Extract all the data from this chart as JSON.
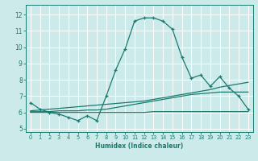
{
  "xlabel": "Humidex (Indice chaleur)",
  "ylabel": "",
  "bg_color": "#cceaea",
  "grid_color": "#ffffff",
  "line_color": "#1a7a6e",
  "xlim": [
    -0.5,
    23.5
  ],
  "ylim": [
    4.8,
    12.6
  ],
  "yticks": [
    5,
    6,
    7,
    8,
    9,
    10,
    11,
    12
  ],
  "xticks": [
    0,
    1,
    2,
    3,
    4,
    5,
    6,
    7,
    8,
    9,
    10,
    11,
    12,
    13,
    14,
    15,
    16,
    17,
    18,
    19,
    20,
    21,
    22,
    23
  ],
  "series1_x": [
    0,
    1,
    2,
    3,
    4,
    5,
    6,
    7,
    8,
    9,
    10,
    11,
    12,
    13,
    14,
    15,
    16,
    17,
    18,
    19,
    20,
    21,
    22,
    23
  ],
  "series1_y": [
    6.6,
    6.2,
    6.0,
    5.9,
    5.7,
    5.5,
    5.8,
    5.5,
    7.0,
    8.6,
    9.9,
    11.6,
    11.8,
    11.8,
    11.6,
    11.1,
    9.4,
    8.1,
    8.3,
    7.6,
    8.2,
    7.5,
    7.0,
    6.2
  ],
  "series2_x": [
    0,
    1,
    2,
    3,
    4,
    5,
    6,
    7,
    8,
    9,
    10,
    11,
    12,
    13,
    14,
    15,
    16,
    17,
    18,
    19,
    20,
    21,
    22,
    23
  ],
  "series2_y": [
    6.1,
    6.15,
    6.2,
    6.25,
    6.3,
    6.35,
    6.4,
    6.45,
    6.5,
    6.55,
    6.6,
    6.65,
    6.7,
    6.8,
    6.9,
    7.0,
    7.1,
    7.2,
    7.3,
    7.4,
    7.55,
    7.65,
    7.75,
    7.85
  ],
  "series3_x": [
    0,
    1,
    2,
    3,
    4,
    5,
    6,
    7,
    8,
    9,
    10,
    11,
    12,
    13,
    14,
    15,
    16,
    17,
    18,
    19,
    20,
    21,
    22,
    23
  ],
  "series3_y": [
    6.0,
    6.0,
    6.0,
    6.0,
    6.0,
    6.0,
    6.0,
    6.0,
    6.0,
    6.0,
    6.0,
    6.0,
    6.0,
    6.05,
    6.05,
    6.05,
    6.05,
    6.05,
    6.05,
    6.05,
    6.05,
    6.05,
    6.05,
    6.05
  ],
  "series4_x": [
    0,
    1,
    2,
    3,
    4,
    5,
    6,
    7,
    8,
    9,
    10,
    11,
    12,
    13,
    14,
    15,
    16,
    17,
    18,
    19,
    20,
    21,
    22,
    23
  ],
  "series4_y": [
    6.05,
    6.05,
    6.05,
    6.1,
    6.1,
    6.1,
    6.15,
    6.15,
    6.2,
    6.3,
    6.4,
    6.5,
    6.6,
    6.7,
    6.8,
    6.9,
    7.0,
    7.1,
    7.15,
    7.2,
    7.25,
    7.25,
    7.25,
    7.25
  ]
}
